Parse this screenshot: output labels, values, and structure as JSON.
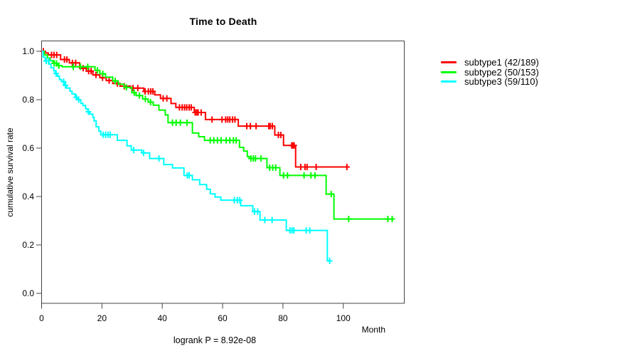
{
  "chart_data": {
    "type": "line",
    "style": "kaplan-meier-step",
    "title": "Time to Death",
    "xlabel": "Month",
    "ylabel": "cumulative survival rate",
    "annotation": "logrank P = 8.92e-08",
    "xlim": [
      0,
      120
    ],
    "ylim": [
      0.0,
      1.0
    ],
    "x_ticks": [
      0,
      20,
      40,
      60,
      80,
      100
    ],
    "y_ticks": [
      1.0,
      0.8,
      0.6,
      0.4,
      0.2,
      0.0
    ],
    "grid": false,
    "legend_position": "right",
    "axis_color": "#444444",
    "censor_mark": "plus",
    "series": [
      {
        "name": "subtype1",
        "label": "subtype1 (42/189)",
        "color": "#ff0000",
        "events": 42,
        "n": 189,
        "end_month": 101.5,
        "steps": [
          [
            0,
            1.0
          ],
          [
            1.0,
            0.993
          ],
          [
            2.2,
            0.985
          ],
          [
            6.3,
            0.966
          ],
          [
            9.2,
            0.952
          ],
          [
            12.6,
            0.93
          ],
          [
            14.8,
            0.918
          ],
          [
            17.0,
            0.902
          ],
          [
            19.3,
            0.891
          ],
          [
            21.4,
            0.879
          ],
          [
            23.6,
            0.867
          ],
          [
            26.0,
            0.856
          ],
          [
            29.5,
            0.848
          ],
          [
            33.9,
            0.834
          ],
          [
            37.5,
            0.82
          ],
          [
            39.4,
            0.805
          ],
          [
            42.9,
            0.784
          ],
          [
            44.5,
            0.768
          ],
          [
            50.6,
            0.747
          ],
          [
            54.3,
            0.718
          ],
          [
            65.2,
            0.691
          ],
          [
            77.3,
            0.654
          ],
          [
            80.2,
            0.611
          ],
          [
            84.2,
            0.522
          ]
        ],
        "censors": [
          0.6,
          3.3,
          4.1,
          5.0,
          7.6,
          8.4,
          10.2,
          11.3,
          13.8,
          15.6,
          16.4,
          18.0,
          20.2,
          22.4,
          25.1,
          27.4,
          30.3,
          31.9,
          34.3,
          35.4,
          36.2,
          36.9,
          40.3,
          41.5,
          45.7,
          46.6,
          47.4,
          48.1,
          48.9,
          49.6,
          50.9,
          51.4,
          51.9,
          52.9,
          56.5,
          59.8,
          61.0,
          61.7,
          62.4,
          63.3,
          64.1,
          68.0,
          69.2,
          71.1,
          75.3,
          75.8,
          76.5,
          78.5,
          79.3,
          82.9,
          83.3,
          83.7,
          85.9,
          87.3,
          88.0,
          91.0,
          101.2
        ]
      },
      {
        "name": "subtype2",
        "label": "subtype2 (50/153)",
        "color": "#00ff00",
        "events": 50,
        "n": 153,
        "end_month": 116.6,
        "steps": [
          [
            0,
            1.0
          ],
          [
            0.9,
            0.985
          ],
          [
            1.9,
            0.972
          ],
          [
            2.8,
            0.961
          ],
          [
            3.8,
            0.95
          ],
          [
            5.4,
            0.941
          ],
          [
            6.8,
            0.936
          ],
          [
            17.7,
            0.921
          ],
          [
            19.3,
            0.907
          ],
          [
            21.2,
            0.893
          ],
          [
            23.6,
            0.877
          ],
          [
            25.4,
            0.864
          ],
          [
            27.3,
            0.851
          ],
          [
            29.9,
            0.829
          ],
          [
            31.3,
            0.817
          ],
          [
            33.5,
            0.803
          ],
          [
            35.3,
            0.79
          ],
          [
            37.0,
            0.777
          ],
          [
            38.9,
            0.757
          ],
          [
            41.0,
            0.737
          ],
          [
            41.9,
            0.705
          ],
          [
            50.0,
            0.662
          ],
          [
            52.1,
            0.647
          ],
          [
            54.0,
            0.632
          ],
          [
            65.6,
            0.603
          ],
          [
            67.0,
            0.588
          ],
          [
            68.2,
            0.565
          ],
          [
            69.0,
            0.557
          ],
          [
            74.7,
            0.519
          ],
          [
            79.0,
            0.487
          ],
          [
            94.3,
            0.41
          ],
          [
            96.9,
            0.307
          ]
        ],
        "censors": [
          4.2,
          4.9,
          5.7,
          10.5,
          12.9,
          15.3,
          18.5,
          20.3,
          24.4,
          28.1,
          30.7,
          32.4,
          34.4,
          36.1,
          43.4,
          44.6,
          46.0,
          48.2,
          55.9,
          57.1,
          58.3,
          59.5,
          61.2,
          62.4,
          63.6,
          64.5,
          69.4,
          70.2,
          70.9,
          72.7,
          75.6,
          76.6,
          77.6,
          80.2,
          81.5,
          87.0,
          89.3,
          90.6,
          96.0,
          101.8,
          114.8,
          116.2
        ]
      },
      {
        "name": "subtype3",
        "label": "subtype3 (59/110)",
        "color": "#00ffff",
        "events": 59,
        "n": 110,
        "end_month": 95.8,
        "steps": [
          [
            0,
            1.0
          ],
          [
            0.5,
            0.976
          ],
          [
            1.2,
            0.96
          ],
          [
            2.4,
            0.947
          ],
          [
            3.1,
            0.932
          ],
          [
            4.0,
            0.92
          ],
          [
            4.5,
            0.908
          ],
          [
            5.2,
            0.897
          ],
          [
            5.9,
            0.883
          ],
          [
            6.6,
            0.874
          ],
          [
            7.5,
            0.859
          ],
          [
            8.3,
            0.848
          ],
          [
            9.4,
            0.835
          ],
          [
            10.1,
            0.824
          ],
          [
            11.1,
            0.81
          ],
          [
            11.8,
            0.8
          ],
          [
            13.0,
            0.785
          ],
          [
            13.7,
            0.776
          ],
          [
            14.6,
            0.762
          ],
          [
            15.3,
            0.75
          ],
          [
            16.0,
            0.74
          ],
          [
            17.0,
            0.727
          ],
          [
            17.4,
            0.712
          ],
          [
            18.1,
            0.688
          ],
          [
            19.0,
            0.67
          ],
          [
            19.6,
            0.655
          ],
          [
            25.1,
            0.632
          ],
          [
            28.3,
            0.609
          ],
          [
            29.7,
            0.592
          ],
          [
            33.2,
            0.58
          ],
          [
            35.8,
            0.557
          ],
          [
            40.5,
            0.532
          ],
          [
            43.4,
            0.518
          ],
          [
            47.2,
            0.487
          ],
          [
            50.0,
            0.469
          ],
          [
            52.4,
            0.449
          ],
          [
            54.7,
            0.43
          ],
          [
            55.9,
            0.411
          ],
          [
            57.5,
            0.398
          ],
          [
            59.4,
            0.385
          ],
          [
            66.0,
            0.362
          ],
          [
            70.0,
            0.338
          ],
          [
            72.4,
            0.303
          ],
          [
            81.1,
            0.26
          ],
          [
            94.7,
            0.134
          ]
        ],
        "censors": [
          1.5,
          2.3,
          4.8,
          7.3,
          7.9,
          11.5,
          12.3,
          15.5,
          20.4,
          21.2,
          22.0,
          22.7,
          30.5,
          33.8,
          38.9,
          48.3,
          48.9,
          63.9,
          64.9,
          65.7,
          70.6,
          71.6,
          74.0,
          76.4,
          82.3,
          83.0,
          83.6,
          87.7,
          88.9,
          95.5
        ]
      }
    ]
  }
}
